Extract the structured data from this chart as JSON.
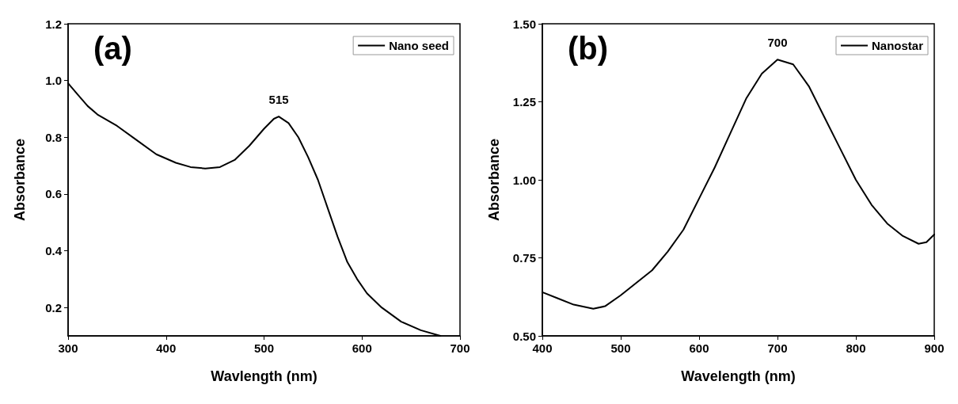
{
  "chart_data": [
    {
      "type": "line",
      "title": "(a)",
      "xlabel": "Wavlength (nm)",
      "ylabel": "Absorbance",
      "xlim": [
        300,
        700
      ],
      "xticks": [
        300,
        400,
        500,
        600,
        700
      ],
      "ylim": [
        0.1,
        1.2
      ],
      "yticks": [
        {
          "value": 0.2,
          "label": "0.2"
        },
        {
          "value": 0.4,
          "label": "0.4"
        },
        {
          "value": 0.6,
          "label": "0.6"
        },
        {
          "value": 0.8,
          "label": "0.8"
        },
        {
          "value": 1.0,
          "label": "1.0"
        },
        {
          "value": 1.2,
          "label": "1.2"
        }
      ],
      "grid": false,
      "legend": "top right",
      "marker": "none",
      "line_style": "solid",
      "annotations": [
        {
          "text": "515",
          "x": 515,
          "y": 0.873
        }
      ],
      "series": [
        {
          "name": "Nano seed",
          "color": "#000000",
          "x": [
            300,
            310,
            320,
            330,
            350,
            370,
            390,
            410,
            425,
            440,
            455,
            470,
            485,
            500,
            510,
            515,
            525,
            535,
            545,
            555,
            565,
            575,
            585,
            595,
            605,
            620,
            640,
            660,
            680
          ],
          "values": [
            0.99,
            0.95,
            0.91,
            0.88,
            0.84,
            0.79,
            0.74,
            0.71,
            0.695,
            0.69,
            0.695,
            0.72,
            0.77,
            0.83,
            0.865,
            0.873,
            0.85,
            0.8,
            0.73,
            0.65,
            0.55,
            0.45,
            0.36,
            0.3,
            0.25,
            0.2,
            0.15,
            0.12,
            0.1
          ]
        }
      ]
    },
    {
      "type": "line",
      "title": "(b)",
      "xlabel": "Wavelength (nm)",
      "ylabel": "Absorbance",
      "xlim": [
        400,
        900
      ],
      "xticks": [
        400,
        500,
        600,
        700,
        800,
        900
      ],
      "ylim": [
        0.5,
        1.5
      ],
      "yticks": [
        {
          "value": 0.5,
          "label": "0.50"
        },
        {
          "value": 0.75,
          "label": "0.75"
        },
        {
          "value": 1.0,
          "label": "1.00"
        },
        {
          "value": 1.25,
          "label": "1.25"
        },
        {
          "value": 1.5,
          "label": "1.50"
        }
      ],
      "grid": false,
      "legend": "top right",
      "marker": "none",
      "line_style": "solid",
      "annotations": [
        {
          "text": "700",
          "x": 700,
          "y": 1.385
        }
      ],
      "series": [
        {
          "name": "Nanostar",
          "color": "#000000",
          "x": [
            400,
            420,
            440,
            465,
            480,
            500,
            520,
            540,
            560,
            580,
            600,
            620,
            640,
            660,
            680,
            700,
            720,
            740,
            760,
            780,
            800,
            820,
            840,
            860,
            880,
            890,
            900
          ],
          "values": [
            0.64,
            0.62,
            0.6,
            0.587,
            0.595,
            0.63,
            0.67,
            0.71,
            0.77,
            0.84,
            0.94,
            1.04,
            1.15,
            1.26,
            1.34,
            1.385,
            1.37,
            1.3,
            1.2,
            1.1,
            1.0,
            0.92,
            0.86,
            0.82,
            0.795,
            0.8,
            0.825
          ]
        }
      ]
    }
  ]
}
